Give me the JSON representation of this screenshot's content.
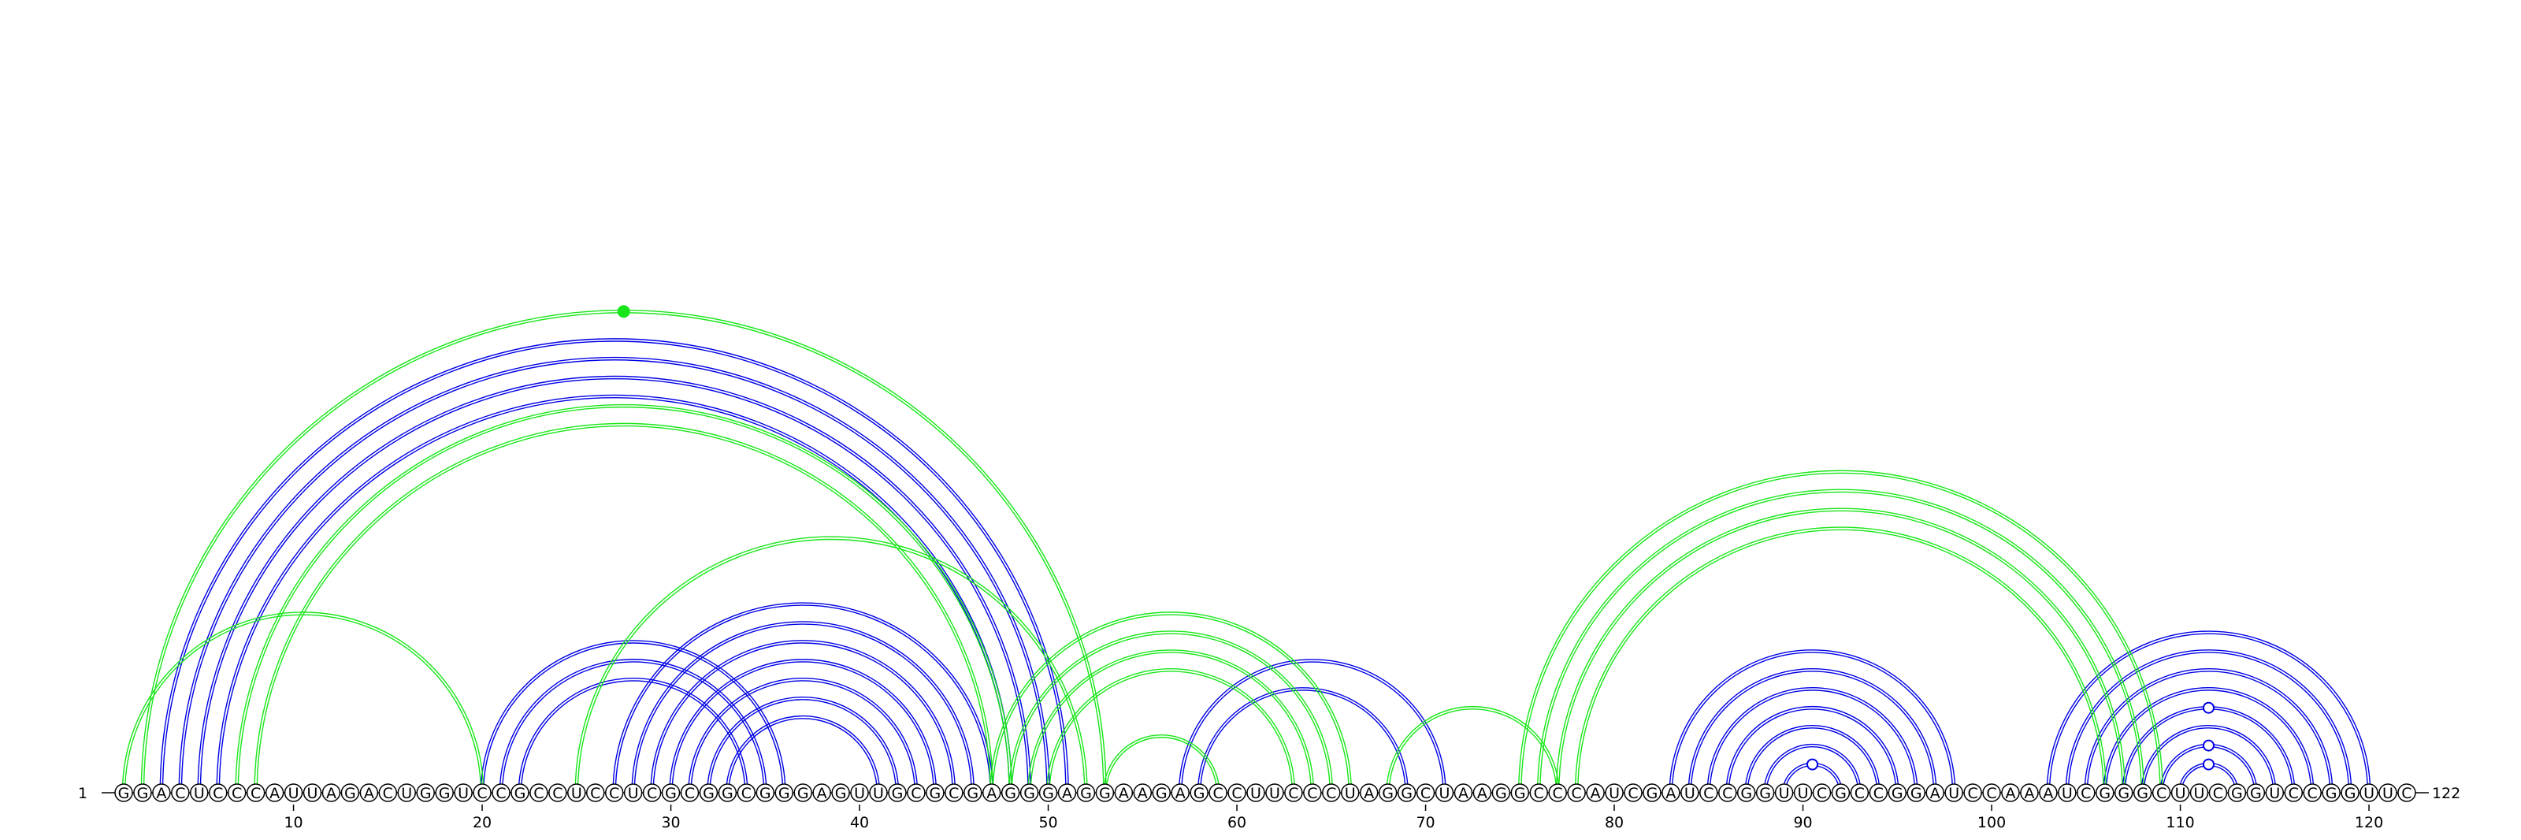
{
  "sequence": {
    "start_label": "1",
    "end_label": "122",
    "letters": "GGACUCCCAUUAGACUGGUCCGCCUCCUCGCGGCGGGAGUUGCGCGAGGGAGGAAGAGCCUUCCCUAGGCUAAGGCCCAUCGAUCCGGUUCGCCGGAUCCAAAUCGGGCUUCGGUCCGGUUC",
    "length": 122,
    "ticks": [
      10,
      20,
      30,
      40,
      50,
      60,
      70,
      80,
      90,
      100,
      110,
      120
    ]
  },
  "colors": {
    "structure_a": "#0000e6",
    "structure_b": "#19e619",
    "backbone": "#000000"
  },
  "chart_data": {
    "type": "arc",
    "x_unit": "nucleotide position",
    "series": [
      {
        "color_key": "structure_a",
        "pairs": [
          [
            3,
            51
          ],
          [
            4,
            50
          ],
          [
            5,
            49
          ],
          [
            6,
            48
          ],
          [
            20,
            36
          ],
          [
            21,
            35
          ],
          [
            22,
            34
          ],
          [
            27,
            47
          ],
          [
            28,
            46
          ],
          [
            29,
            45
          ],
          [
            30,
            44
          ],
          [
            31,
            43
          ],
          [
            32,
            42
          ],
          [
            33,
            41
          ],
          [
            57,
            71
          ],
          [
            58,
            69
          ],
          [
            83,
            98
          ],
          [
            84,
            97
          ],
          [
            85,
            96
          ],
          [
            86,
            95
          ],
          [
            87,
            94
          ],
          [
            88,
            93
          ],
          [
            89,
            92
          ],
          [
            103,
            120
          ],
          [
            104,
            119
          ],
          [
            105,
            118
          ],
          [
            106,
            117
          ],
          [
            107,
            116
          ],
          [
            108,
            115
          ],
          [
            109,
            114
          ],
          [
            110,
            113
          ]
        ],
        "markers": [
          {
            "position": 90.5,
            "level": 1
          },
          {
            "position": 111.5,
            "level": 1
          },
          {
            "position": 111.5,
            "level": 2
          },
          {
            "position": 111.5,
            "level": 4
          }
        ]
      },
      {
        "color_key": "structure_b",
        "pairs": [
          [
            2,
            53
          ],
          [
            7,
            48
          ],
          [
            8,
            47
          ],
          [
            1,
            20
          ],
          [
            25,
            52
          ],
          [
            47,
            66
          ],
          [
            48,
            65
          ],
          [
            49,
            64
          ],
          [
            50,
            63
          ],
          [
            53,
            59
          ],
          [
            68,
            77
          ],
          [
            75,
            109
          ],
          [
            76,
            108
          ],
          [
            77,
            107
          ],
          [
            78,
            106
          ]
        ],
        "markers": [
          {
            "position": 27.5,
            "level": 0
          }
        ]
      }
    ]
  }
}
